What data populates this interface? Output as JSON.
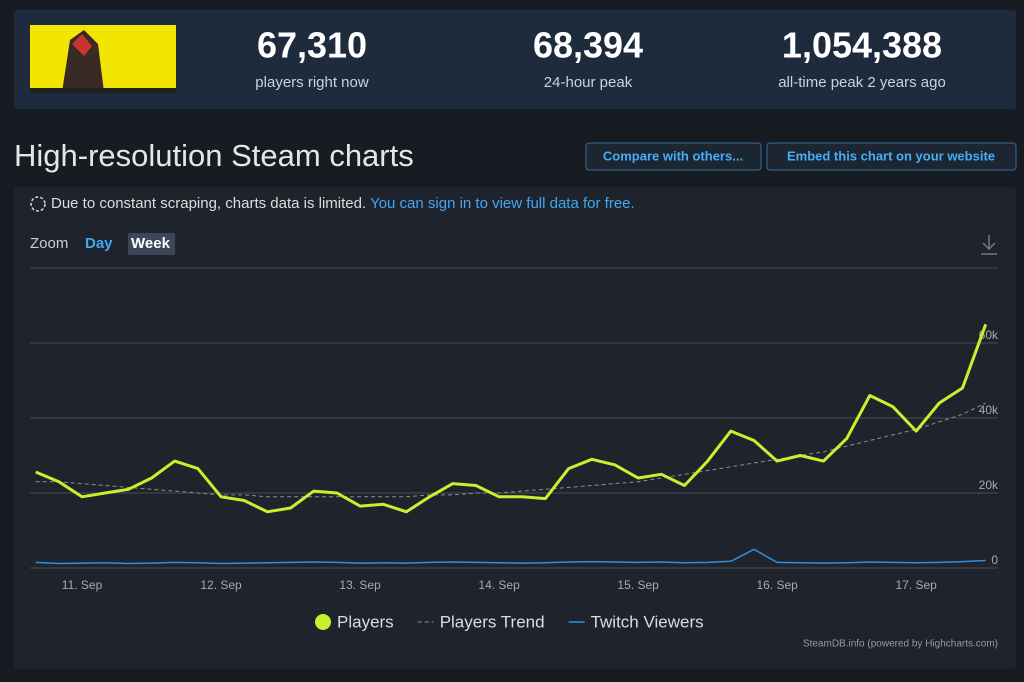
{
  "header": {
    "stats": [
      {
        "value": "67,310",
        "label": "players right now"
      },
      {
        "value": "68,394",
        "label": "24-hour peak"
      },
      {
        "value": "1,054,388",
        "label": "all-time peak 2 years ago"
      }
    ]
  },
  "title": "High-resolution Steam charts",
  "buttons": [
    "Compare with others...",
    "Embed this chart on your website"
  ],
  "notice": {
    "text": "Due to constant scraping, charts data is limited.",
    "link": "You can sign in to view full data for free."
  },
  "zoom": {
    "label": "Zoom",
    "options": [
      "Day",
      "Week"
    ]
  },
  "chart_data": {
    "type": "line",
    "categories": [
      null,
      null,
      "11. Sep",
      null,
      null,
      null,
      null,
      null,
      "12. Sep",
      null,
      null,
      null,
      null,
      null,
      "13. Sep",
      null,
      null,
      null,
      null,
      null,
      "14. Sep",
      null,
      null,
      null,
      null,
      null,
      "15. Sep",
      null,
      null,
      null,
      null,
      null,
      "16. Sep",
      null,
      null,
      null,
      null,
      null,
      "17. Sep",
      null,
      null,
      null
    ],
    "series": [
      {
        "name": "Players",
        "color": "#c6f12e",
        "marker": "circle",
        "values": [
          25600,
          23000,
          19000,
          20000,
          21000,
          24000,
          28500,
          26500,
          19000,
          18000,
          15000,
          16000,
          20500,
          20000,
          16500,
          17000,
          15000,
          19000,
          22500,
          22000,
          19000,
          19000,
          18500,
          26500,
          29000,
          27500,
          24000,
          25000,
          22000,
          28500,
          36500,
          34000,
          28500,
          30000,
          28500,
          34500,
          46000,
          43000,
          36500,
          44000,
          48000,
          65000
        ]
      },
      {
        "name": "Players Trend",
        "color": "#8a8f96",
        "dashed": true,
        "values": [
          23000,
          23000,
          22500,
          22000,
          21500,
          21000,
          20500,
          20000,
          19500,
          19500,
          19000,
          19000,
          19000,
          19000,
          19000,
          19000,
          19000,
          19500,
          19500,
          20000,
          20000,
          20500,
          21000,
          21500,
          22000,
          22500,
          23000,
          24000,
          25000,
          26000,
          27000,
          28000,
          29000,
          30000,
          31000,
          32500,
          34000,
          35500,
          37000,
          39000,
          41000,
          44000
        ]
      },
      {
        "name": "Twitch Viewers",
        "color": "#2f8fdc",
        "values": [
          1500,
          1200,
          1300,
          1400,
          1200,
          1300,
          1500,
          1400,
          1200,
          1300,
          1400,
          1500,
          1600,
          1500,
          1300,
          1400,
          1300,
          1500,
          1600,
          1500,
          1400,
          1300,
          1400,
          1600,
          1700,
          1600,
          1500,
          1600,
          1400,
          1500,
          1800,
          5000,
          1500,
          1400,
          1300,
          1400,
          1600,
          1500,
          1400,
          1500,
          1700,
          2000
        ]
      }
    ],
    "ylim": [
      0,
      80000
    ],
    "yticks": [
      0,
      {
        "value": 20000,
        "label": "20k"
      },
      {
        "value": 40000,
        "label": "40k"
      },
      {
        "value": 60000,
        "label": "60k"
      }
    ],
    "grid": true,
    "credit": "SteamDB.info (powered by Highcharts.com)"
  }
}
